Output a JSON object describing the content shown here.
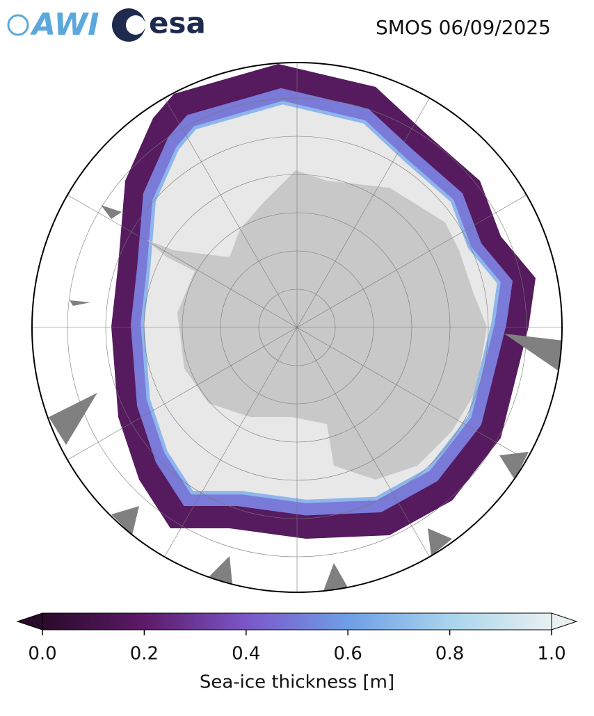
{
  "header": {
    "logos": [
      "AWI",
      "esa"
    ],
    "title": "SMOS 06/09/2025"
  },
  "colorbar": {
    "label": "Sea-ice thickness [m]",
    "lim": [
      0,
      1
    ],
    "ticks": [
      {
        "value": 0,
        "label": "0.0"
      },
      {
        "value": 0.2,
        "label": "0.2"
      },
      {
        "value": 0.4,
        "label": "0.4"
      },
      {
        "value": 0.6,
        "label": "0.6"
      },
      {
        "value": 0.8,
        "label": "0.8"
      },
      {
        "value": 1,
        "label": "1.0"
      }
    ],
    "colors": [
      "#2a0a2a",
      "#5c1a68",
      "#7b56c8",
      "#6e9ee6",
      "#a8d4ec",
      "#e8f0f0"
    ]
  }
}
